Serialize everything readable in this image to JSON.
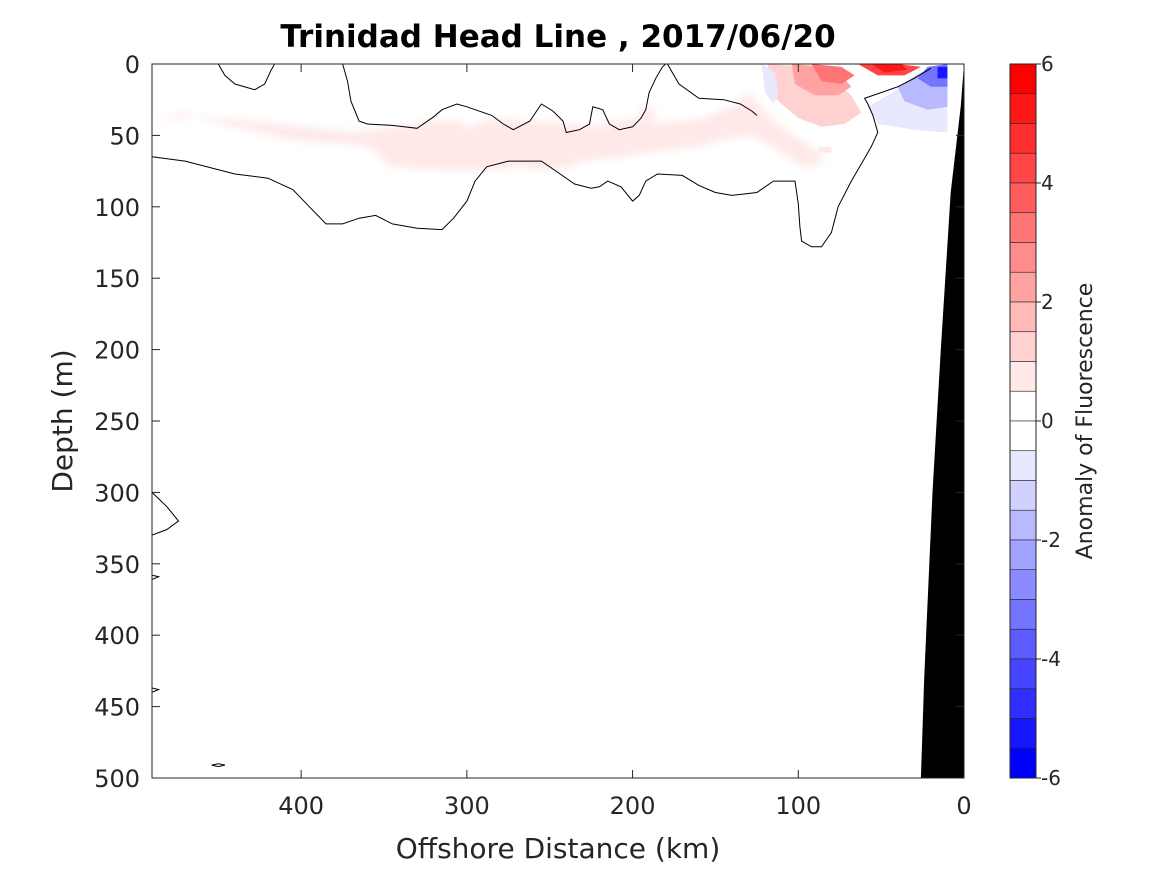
{
  "chart_data": {
    "type": "heatmap",
    "title": "Trinidad Head Line , 2017/06/20",
    "xlabel": "Offshore Distance (km)",
    "ylabel": "Depth (m)",
    "xlim": [
      490,
      0
    ],
    "ylim": [
      0,
      500
    ],
    "x_reversed": true,
    "y_reversed": true,
    "xticks": [
      {
        "value": 400,
        "label": "400"
      },
      {
        "value": 300,
        "label": "300"
      },
      {
        "value": 200,
        "label": "200"
      },
      {
        "value": 100,
        "label": "100"
      },
      {
        "value": 0,
        "label": "0"
      }
    ],
    "yticks": [
      {
        "value": 0,
        "label": "0"
      },
      {
        "value": 50,
        "label": "50"
      },
      {
        "value": 100,
        "label": "100"
      },
      {
        "value": 150,
        "label": "150"
      },
      {
        "value": 200,
        "label": "200"
      },
      {
        "value": 250,
        "label": "250"
      },
      {
        "value": 300,
        "label": "300"
      },
      {
        "value": 350,
        "label": "350"
      },
      {
        "value": 400,
        "label": "400"
      },
      {
        "value": 450,
        "label": "450"
      },
      {
        "value": 500,
        "label": "500"
      }
    ],
    "colorbar": {
      "label": "Anomaly of Fluorescence",
      "range": [
        -6,
        6
      ],
      "ticks": [
        {
          "value": 6,
          "label": "6"
        },
        {
          "value": 4,
          "label": "4"
        },
        {
          "value": 2,
          "label": "2"
        },
        {
          "value": 0,
          "label": "0"
        },
        {
          "value": -2,
          "label": "-2"
        },
        {
          "value": -4,
          "label": "-4"
        },
        {
          "value": -6,
          "label": "-6"
        }
      ],
      "levels": [
        {
          "from": 5.5,
          "to": 6,
          "color": "#ff0000"
        },
        {
          "from": 5,
          "to": 5.5,
          "color": "#ff1717"
        },
        {
          "from": 4.5,
          "to": 5,
          "color": "#ff2e2e"
        },
        {
          "from": 4,
          "to": 4.5,
          "color": "#ff4545"
        },
        {
          "from": 3.5,
          "to": 4,
          "color": "#ff5d5d"
        },
        {
          "from": 3,
          "to": 3.5,
          "color": "#ff7474"
        },
        {
          "from": 2.5,
          "to": 3,
          "color": "#ff8b8b"
        },
        {
          "from": 2,
          "to": 2.5,
          "color": "#ffa2a2"
        },
        {
          "from": 1.5,
          "to": 2,
          "color": "#ffb9b9"
        },
        {
          "from": 1,
          "to": 1.5,
          "color": "#ffd1d1"
        },
        {
          "from": 0.5,
          "to": 1,
          "color": "#ffe8e8"
        },
        {
          "from": 0,
          "to": 0.5,
          "color": "#ffffff"
        },
        {
          "from": -0.5,
          "to": 0,
          "color": "#ffffff"
        },
        {
          "from": -1,
          "to": -0.5,
          "color": "#e8e8ff"
        },
        {
          "from": -1.5,
          "to": -1,
          "color": "#d1d1ff"
        },
        {
          "from": -2,
          "to": -1.5,
          "color": "#b9b9ff"
        },
        {
          "from": -2.5,
          "to": -2,
          "color": "#a2a2ff"
        },
        {
          "from": -3,
          "to": -2.5,
          "color": "#8b8bff"
        },
        {
          "from": -3.5,
          "to": -3,
          "color": "#7474ff"
        },
        {
          "from": -4,
          "to": -3.5,
          "color": "#5d5dff"
        },
        {
          "from": -4.5,
          "to": -4,
          "color": "#4545ff"
        },
        {
          "from": -5,
          "to": -4.5,
          "color": "#2e2eff"
        },
        {
          "from": -5.5,
          "to": -5,
          "color": "#1717ff"
        },
        {
          "from": -6,
          "to": -5.5,
          "color": "#0000ff"
        }
      ]
    },
    "zero_contours": [
      [
        [
          490,
          65
        ],
        [
          470,
          68
        ],
        [
          440,
          77
        ],
        [
          420,
          80
        ],
        [
          405,
          88
        ],
        [
          395,
          100
        ],
        [
          385,
          112
        ],
        [
          375,
          112
        ],
        [
          365,
          108
        ],
        [
          355,
          106
        ],
        [
          345,
          112
        ],
        [
          330,
          115
        ],
        [
          315,
          116
        ],
        [
          308,
          108
        ],
        [
          300,
          96
        ],
        [
          295,
          82
        ],
        [
          288,
          72
        ],
        [
          275,
          68
        ],
        [
          255,
          68
        ],
        [
          245,
          76
        ],
        [
          235,
          84
        ],
        [
          225,
          87
        ],
        [
          220,
          86
        ],
        [
          215,
          82
        ],
        [
          207,
          86
        ],
        [
          200,
          96
        ],
        [
          196,
          92
        ],
        [
          192,
          82
        ],
        [
          185,
          77
        ],
        [
          170,
          78
        ],
        [
          160,
          85
        ],
        [
          150,
          90
        ],
        [
          140,
          92
        ],
        [
          125,
          90
        ],
        [
          115,
          82
        ],
        [
          102,
          82
        ],
        [
          100,
          98
        ],
        [
          99,
          114
        ],
        [
          98,
          124
        ],
        [
          92,
          128
        ],
        [
          86,
          128
        ],
        [
          80,
          118
        ],
        [
          76,
          100
        ],
        [
          68,
          82
        ],
        [
          62,
          70
        ],
        [
          56,
          58
        ],
        [
          52,
          48
        ],
        [
          55,
          36
        ],
        [
          58,
          28
        ],
        [
          60,
          24
        ],
        [
          50,
          20
        ],
        [
          40,
          16
        ],
        [
          30,
          10
        ],
        [
          20,
          3
        ]
      ],
      [
        [
          450,
          0
        ],
        [
          446,
          8
        ],
        [
          440,
          14
        ],
        [
          428,
          18
        ],
        [
          422,
          14
        ],
        [
          418,
          4
        ],
        [
          416,
          0
        ]
      ],
      [
        [
          375,
          0
        ],
        [
          372,
          12
        ],
        [
          370,
          26
        ],
        [
          365,
          40
        ],
        [
          360,
          42
        ],
        [
          345,
          43
        ],
        [
          330,
          45
        ],
        [
          320,
          37
        ],
        [
          315,
          32
        ],
        [
          306,
          28
        ],
        [
          300,
          30
        ],
        [
          285,
          36
        ],
        [
          278,
          42
        ],
        [
          272,
          46
        ],
        [
          262,
          40
        ],
        [
          255,
          28
        ],
        [
          248,
          33
        ],
        [
          242,
          40
        ],
        [
          240,
          48
        ],
        [
          232,
          46
        ],
        [
          226,
          42
        ],
        [
          224,
          30
        ],
        [
          218,
          32
        ],
        [
          214,
          42
        ],
        [
          208,
          46
        ],
        [
          200,
          44
        ],
        [
          195,
          38
        ],
        [
          192,
          32
        ],
        [
          190,
          20
        ],
        [
          186,
          10
        ],
        [
          182,
          2
        ],
        [
          180,
          0
        ]
      ],
      [
        [
          179,
          0
        ],
        [
          172,
          14
        ],
        [
          160,
          24
        ],
        [
          145,
          25
        ],
        [
          135,
          28
        ],
        [
          128,
          33
        ],
        [
          125,
          36
        ]
      ],
      [
        [
          490,
          300
        ],
        [
          481,
          310
        ],
        [
          474,
          320
        ],
        [
          481,
          326
        ],
        [
          490,
          330
        ]
      ],
      [
        [
          490,
          358
        ],
        [
          486,
          359
        ],
        [
          490,
          361
        ]
      ],
      [
        [
          490,
          437
        ],
        [
          486,
          438
        ],
        [
          490,
          440
        ]
      ],
      [
        [
          454,
          491
        ],
        [
          450,
          490
        ],
        [
          446,
          491
        ],
        [
          450,
          492
        ],
        [
          454,
          491
        ]
      ]
    ]
  }
}
